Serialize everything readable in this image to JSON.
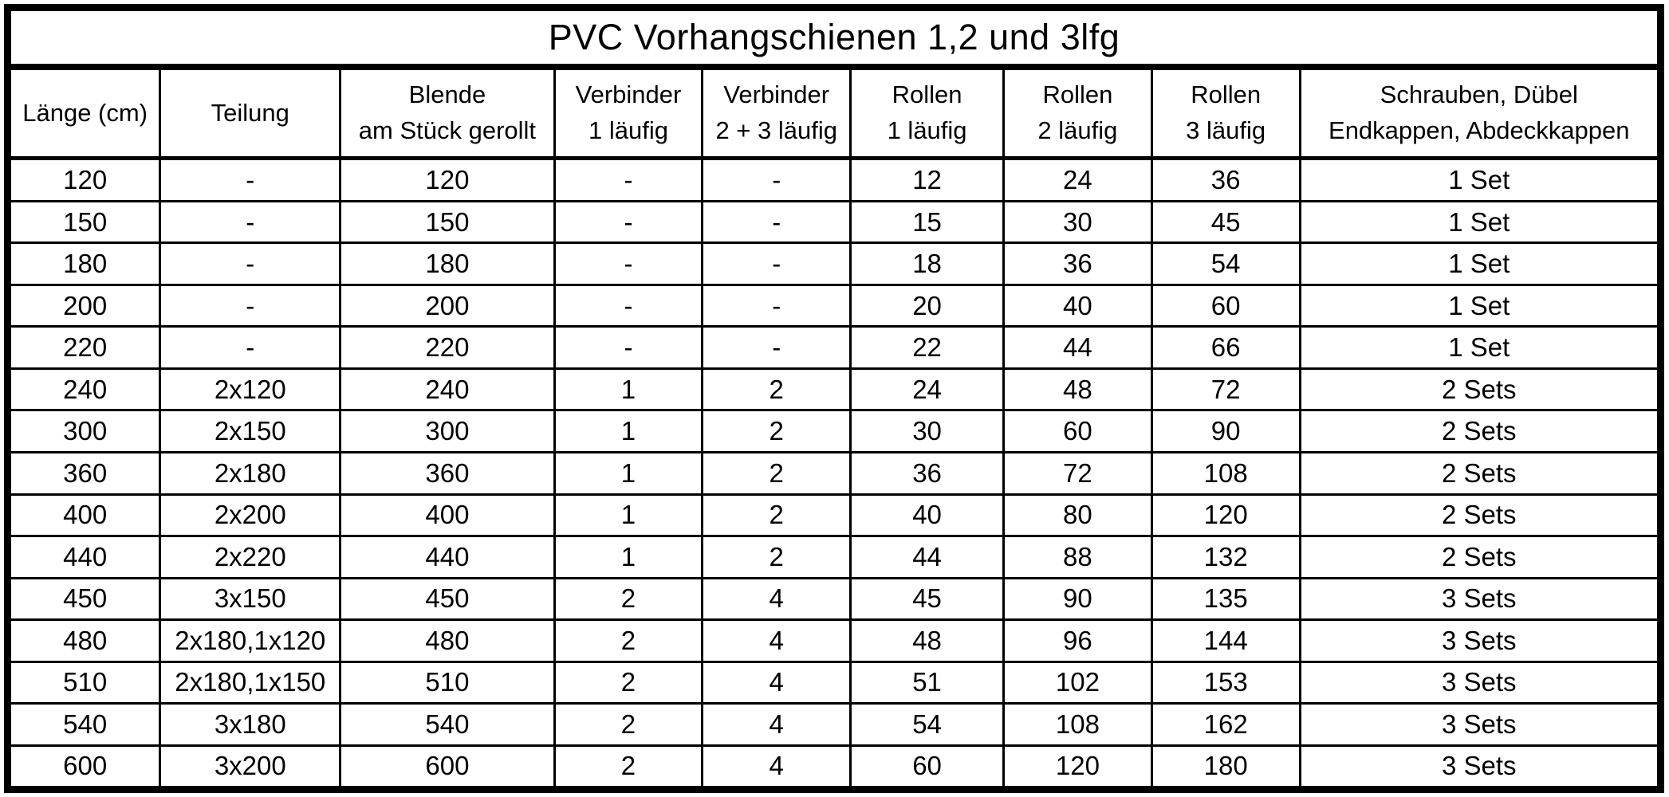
{
  "title": "PVC Vorhangschienen 1,2 und 3lfg",
  "colors": {
    "border": "#000000",
    "background": "#ffffff",
    "text": "#000000"
  },
  "chart_data": {
    "type": "table",
    "title": "PVC Vorhangschienen 1,2 und 3lfg",
    "columns": [
      {
        "lines": [
          "Länge (cm)"
        ]
      },
      {
        "lines": [
          "Teilung"
        ]
      },
      {
        "lines": [
          "Blende",
          "am Stück gerollt"
        ]
      },
      {
        "lines": [
          "Verbinder",
          "1 läufig"
        ]
      },
      {
        "lines": [
          "Verbinder",
          "2 + 3 läufig"
        ]
      },
      {
        "lines": [
          "Rollen",
          "1 läufig"
        ]
      },
      {
        "lines": [
          "Rollen",
          "2 läufig"
        ]
      },
      {
        "lines": [
          "Rollen",
          "3 läufig"
        ]
      },
      {
        "lines": [
          "Schrauben, Dübel",
          "Endkappen, Abdeckkappen"
        ]
      }
    ],
    "rows": [
      [
        "120",
        "-",
        "120",
        "-",
        "-",
        "12",
        "24",
        "36",
        "1 Set"
      ],
      [
        "150",
        "-",
        "150",
        "-",
        "-",
        "15",
        "30",
        "45",
        "1 Set"
      ],
      [
        "180",
        "-",
        "180",
        "-",
        "-",
        "18",
        "36",
        "54",
        "1 Set"
      ],
      [
        "200",
        "-",
        "200",
        "-",
        "-",
        "20",
        "40",
        "60",
        "1 Set"
      ],
      [
        "220",
        "-",
        "220",
        "-",
        "-",
        "22",
        "44",
        "66",
        "1 Set"
      ],
      [
        "240",
        "2x120",
        "240",
        "1",
        "2",
        "24",
        "48",
        "72",
        "2 Sets"
      ],
      [
        "300",
        "2x150",
        "300",
        "1",
        "2",
        "30",
        "60",
        "90",
        "2 Sets"
      ],
      [
        "360",
        "2x180",
        "360",
        "1",
        "2",
        "36",
        "72",
        "108",
        "2 Sets"
      ],
      [
        "400",
        "2x200",
        "400",
        "1",
        "2",
        "40",
        "80",
        "120",
        "2 Sets"
      ],
      [
        "440",
        "2x220",
        "440",
        "1",
        "2",
        "44",
        "88",
        "132",
        "2 Sets"
      ],
      [
        "450",
        "3x150",
        "450",
        "2",
        "4",
        "45",
        "90",
        "135",
        "3 Sets"
      ],
      [
        "480",
        "2x180,1x120",
        "480",
        "2",
        "4",
        "48",
        "96",
        "144",
        "3 Sets"
      ],
      [
        "510",
        "2x180,1x150",
        "510",
        "2",
        "4",
        "51",
        "102",
        "153",
        "3 Sets"
      ],
      [
        "540",
        "3x180",
        "540",
        "2",
        "4",
        "54",
        "108",
        "162",
        "3 Sets"
      ],
      [
        "600",
        "3x200",
        "600",
        "2",
        "4",
        "60",
        "120",
        "180",
        "3 Sets"
      ]
    ]
  }
}
